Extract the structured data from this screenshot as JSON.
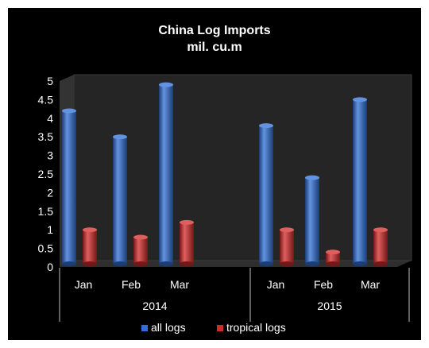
{
  "chart_data": {
    "type": "bar",
    "title": "China Log Imports",
    "subtitle": "mil. cu.m",
    "groups": [
      {
        "label": "2014",
        "categories": [
          "Jan",
          "Feb",
          "Mar"
        ]
      },
      {
        "label": "2015",
        "categories": [
          "Jan",
          "Feb",
          "Mar"
        ]
      }
    ],
    "series": [
      {
        "name": "all logs",
        "color": "#2f6fd6",
        "values": [
          4.2,
          3.5,
          4.9,
          3.8,
          2.4,
          4.5
        ]
      },
      {
        "name": "tropical logs",
        "color": "#d42a2a",
        "values": [
          1.0,
          0.8,
          1.2,
          1.0,
          0.4,
          1.0
        ]
      }
    ],
    "ylim": [
      0,
      5
    ],
    "yticks": [
      "0",
      "0.5",
      "1",
      "1.5",
      "2",
      "2.5",
      "3",
      "3.5",
      "4",
      "4.5",
      "5"
    ],
    "legend_position": "bottom",
    "grid": false,
    "style": "3d-cylinder"
  }
}
